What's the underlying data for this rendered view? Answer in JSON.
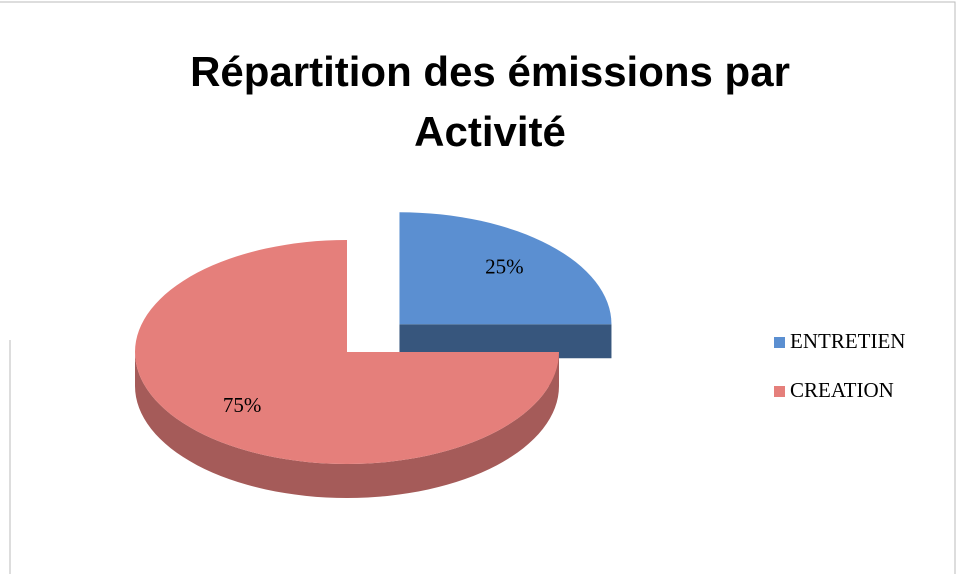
{
  "chart_data": {
    "type": "pie",
    "title": "Répartition des émissions par Activité",
    "categories": [
      "ENTRETIEN",
      "CREATION"
    ],
    "values": [
      25,
      75
    ],
    "value_labels": [
      "25%",
      "75%"
    ],
    "colors": [
      "#5b8fd1",
      "#e57f7b"
    ],
    "legend": "right",
    "exploded": [
      true,
      false
    ]
  }
}
